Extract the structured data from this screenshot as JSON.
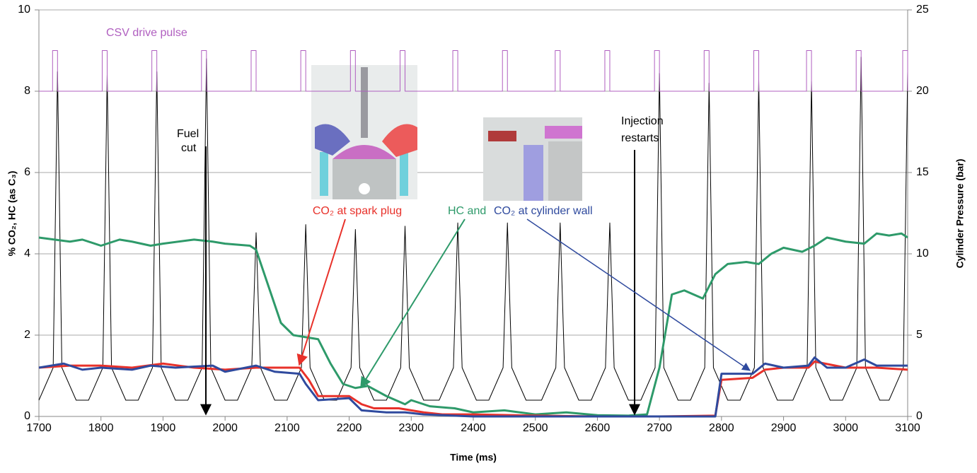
{
  "chart_data": {
    "type": "line",
    "xlabel": "Time (ms)",
    "ylabel": "% CO₂, HC (as C₃)",
    "y2label": "Cylinder Pressure (bar)",
    "xlim": [
      1700,
      3100
    ],
    "xticks": [
      1700,
      1800,
      1900,
      2000,
      2100,
      2200,
      2300,
      2400,
      2500,
      2600,
      2700,
      2800,
      2900,
      3000,
      3100
    ],
    "ylim": [
      0,
      10
    ],
    "yticks": [
      0,
      2,
      4,
      6,
      8,
      10
    ],
    "y2lim": [
      0,
      25
    ],
    "y2ticks": [
      0,
      5,
      10,
      15,
      20,
      25
    ],
    "grid": true,
    "annotations": [
      "CSV drive pulse",
      "Fuel",
      "cut",
      "Injection",
      "restarts",
      "CO₂ at spark plug",
      "HC and",
      "CO₂ at cylinder wall"
    ],
    "series": [
      {
        "color": "#000000",
        "axis": "y2",
        "width": 1,
        "x": [
          1700,
          1723,
          1730,
          1737,
          1760,
          1780,
          1803,
          1810,
          1817,
          1840,
          1860,
          1883,
          1890,
          1897,
          1920,
          1940,
          1963,
          1970,
          1977,
          2000,
          2020,
          2043,
          2050,
          2057,
          2080,
          2100,
          2123,
          2130,
          2137,
          2160,
          2180,
          2203,
          2210,
          2217,
          2240,
          2260,
          2283,
          2290,
          2297,
          2320,
          2345,
          2368,
          2375,
          2382,
          2405,
          2425,
          2448,
          2455,
          2462,
          2485,
          2510,
          2533,
          2540,
          2547,
          2570,
          2590,
          2613,
          2620,
          2627,
          2650,
          2670,
          2693,
          2700,
          2707,
          2730,
          2750,
          2773,
          2780,
          2787,
          2810,
          2830,
          2853,
          2860,
          2867,
          2890,
          2915,
          2938,
          2945,
          2952,
          2975,
          2995,
          3018,
          3025,
          3032,
          3055,
          3070,
          3093,
          3100
        ],
        "values": [
          1.0,
          3,
          21.2,
          3,
          1.0,
          1.0,
          3,
          21.0,
          3,
          1.0,
          1.0,
          3,
          21.2,
          3,
          1.0,
          1.0,
          3,
          22.0,
          3,
          1.0,
          1.0,
          3,
          11.3,
          3,
          1.0,
          1.0,
          3,
          11.8,
          3,
          1.0,
          1.0,
          3,
          11.5,
          3,
          1.0,
          1.0,
          3,
          11.7,
          3,
          1.0,
          1.0,
          3,
          11.9,
          3,
          1.0,
          1.0,
          3,
          11.9,
          3,
          1.0,
          1.0,
          3,
          11.9,
          3,
          1.0,
          1.0,
          3,
          11.9,
          3,
          1.0,
          1.0,
          3,
          21.1,
          3,
          1.0,
          1.0,
          3,
          20.5,
          3,
          1.0,
          1.0,
          3,
          20.7,
          3,
          1.0,
          1.0,
          3,
          20.6,
          3,
          1.0,
          1.0,
          3,
          22.1,
          3,
          1.0,
          1.0,
          3,
          21.2
        ]
      },
      {
        "color": "#b05fc0",
        "axis": "y",
        "width": 1,
        "x": [
          1700,
          1722,
          1722,
          1730,
          1730,
          1802,
          1802,
          1810,
          1810,
          1882,
          1882,
          1890,
          1890,
          1962,
          1962,
          1970,
          1970,
          2042,
          2042,
          2050,
          2050,
          2122,
          2122,
          2130,
          2130,
          2202,
          2202,
          2210,
          2210,
          2282,
          2282,
          2290,
          2290,
          2367,
          2367,
          2375,
          2375,
          2447,
          2447,
          2455,
          2455,
          2532,
          2532,
          2540,
          2540,
          2612,
          2612,
          2620,
          2620,
          2692,
          2692,
          2700,
          2700,
          2772,
          2772,
          2780,
          2780,
          2852,
          2852,
          2860,
          2860,
          2937,
          2937,
          2945,
          2945,
          3017,
          3017,
          3025,
          3025,
          3092,
          3092,
          3100,
          3100
        ],
        "values": [
          8,
          8,
          9,
          9,
          8,
          8,
          9,
          9,
          8,
          8,
          9,
          9,
          8,
          8,
          9,
          9,
          8,
          8,
          9,
          9,
          8,
          8,
          9,
          9,
          8,
          8,
          9,
          9,
          8,
          8,
          9,
          9,
          8,
          8,
          9,
          9,
          8,
          8,
          9,
          9,
          8,
          8,
          9,
          9,
          8,
          8,
          9,
          9,
          8,
          8,
          9,
          9,
          8,
          8,
          9,
          9,
          8,
          8,
          9,
          9,
          8,
          8,
          9,
          9,
          8,
          8,
          9,
          9,
          8,
          8,
          9,
          9,
          8
        ]
      },
      {
        "color": "#2e9a6a",
        "axis": "y",
        "width": 3,
        "x": [
          1700,
          1750,
          1770,
          1800,
          1830,
          1850,
          1880,
          1900,
          1950,
          1980,
          2000,
          2040,
          2050,
          2070,
          2090,
          2110,
          2150,
          2170,
          2190,
          2210,
          2230,
          2260,
          2290,
          2300,
          2330,
          2370,
          2400,
          2450,
          2500,
          2550,
          2600,
          2650,
          2680,
          2700,
          2720,
          2740,
          2770,
          2790,
          2810,
          2840,
          2860,
          2880,
          2900,
          2930,
          2950,
          2970,
          3000,
          3030,
          3050,
          3070,
          3090,
          3100
        ],
        "values": [
          4.4,
          4.3,
          4.35,
          4.2,
          4.35,
          4.3,
          4.2,
          4.25,
          4.35,
          4.3,
          4.25,
          4.2,
          4.1,
          3.2,
          2.3,
          2.0,
          1.9,
          1.3,
          0.8,
          0.7,
          0.75,
          0.5,
          0.3,
          0.4,
          0.25,
          0.2,
          0.1,
          0.15,
          0.05,
          0.1,
          0.03,
          0.02,
          0.05,
          1.2,
          3.0,
          3.1,
          2.9,
          3.5,
          3.75,
          3.8,
          3.75,
          4.0,
          4.15,
          4.05,
          4.2,
          4.4,
          4.3,
          4.25,
          4.5,
          4.45,
          4.5,
          4.4
        ]
      },
      {
        "color": "#e8312a",
        "axis": "y",
        "width": 3,
        "x": [
          1700,
          1750,
          1800,
          1850,
          1900,
          1950,
          2000,
          2050,
          2100,
          2120,
          2135,
          2150,
          2200,
          2220,
          2240,
          2280,
          2300,
          2320,
          2350,
          2400,
          2500,
          2600,
          2700,
          2790,
          2800,
          2850,
          2870,
          2900,
          2940,
          2950,
          3000,
          3050,
          3100
        ],
        "values": [
          1.2,
          1.25,
          1.25,
          1.2,
          1.3,
          1.2,
          1.15,
          1.2,
          1.2,
          1.2,
          0.9,
          0.5,
          0.5,
          0.3,
          0.2,
          0.2,
          0.15,
          0.1,
          0.05,
          0.05,
          0.02,
          0.0,
          0.0,
          0.02,
          0.9,
          0.95,
          1.15,
          1.2,
          1.2,
          1.35,
          1.2,
          1.2,
          1.15
        ]
      },
      {
        "color": "#2f4a9e",
        "axis": "y",
        "width": 3,
        "x": [
          1700,
          1740,
          1770,
          1800,
          1850,
          1880,
          1920,
          1980,
          2000,
          2050,
          2080,
          2120,
          2130,
          2150,
          2200,
          2220,
          2260,
          2290,
          2320,
          2400,
          2500,
          2700,
          2790,
          2800,
          2850,
          2870,
          2900,
          2940,
          2950,
          2970,
          3000,
          3030,
          3050,
          3100
        ],
        "values": [
          1.2,
          1.3,
          1.15,
          1.2,
          1.15,
          1.25,
          1.2,
          1.25,
          1.1,
          1.25,
          1.1,
          1.05,
          0.8,
          0.4,
          0.45,
          0.15,
          0.1,
          0.1,
          0.05,
          0.0,
          0.0,
          0.0,
          0.0,
          1.05,
          1.05,
          1.3,
          1.2,
          1.25,
          1.45,
          1.2,
          1.2,
          1.4,
          1.25,
          1.25
        ]
      }
    ]
  }
}
